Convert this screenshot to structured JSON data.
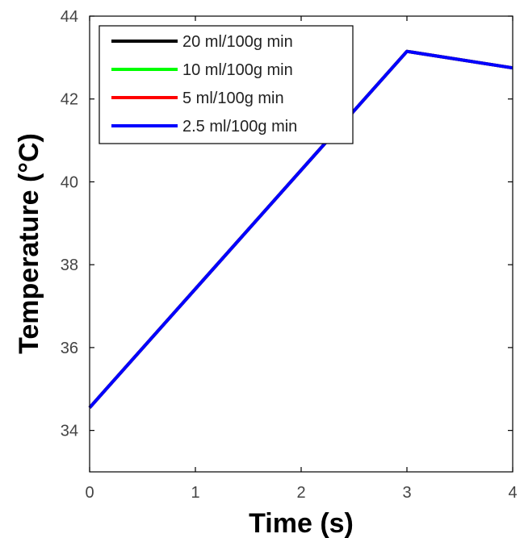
{
  "chart_data": {
    "type": "line",
    "title": "",
    "xlabel": "Time (s)",
    "ylabel": "Temperature (°C)",
    "xlim": [
      0,
      4
    ],
    "ylim": [
      33,
      44
    ],
    "xticks": [
      0,
      1,
      2,
      3,
      4
    ],
    "yticks": [
      34,
      36,
      38,
      40,
      42,
      44
    ],
    "xtick_labels": [
      "0",
      "1",
      "2",
      "3",
      "4"
    ],
    "ytick_labels": [
      "34",
      "36",
      "38",
      "40",
      "42",
      "44"
    ],
    "grid": false,
    "legend_placement": "top-left",
    "series": [
      {
        "name": "20 ml/100g min",
        "color": "#000000",
        "x": [
          0,
          3,
          4
        ],
        "y": [
          34.55,
          43.15,
          42.75
        ]
      },
      {
        "name": "10 ml/100g min",
        "color": "#00ff00",
        "x": [
          0,
          3,
          4
        ],
        "y": [
          34.55,
          43.15,
          42.75
        ]
      },
      {
        "name": "5 ml/100g min",
        "color": "#ff0000",
        "x": [
          0,
          3,
          4
        ],
        "y": [
          34.55,
          43.15,
          42.75
        ]
      },
      {
        "name": "2.5 ml/100g min",
        "color": "#0000ff",
        "x": [
          0,
          3,
          4
        ],
        "y": [
          34.55,
          43.15,
          42.75
        ]
      }
    ]
  }
}
